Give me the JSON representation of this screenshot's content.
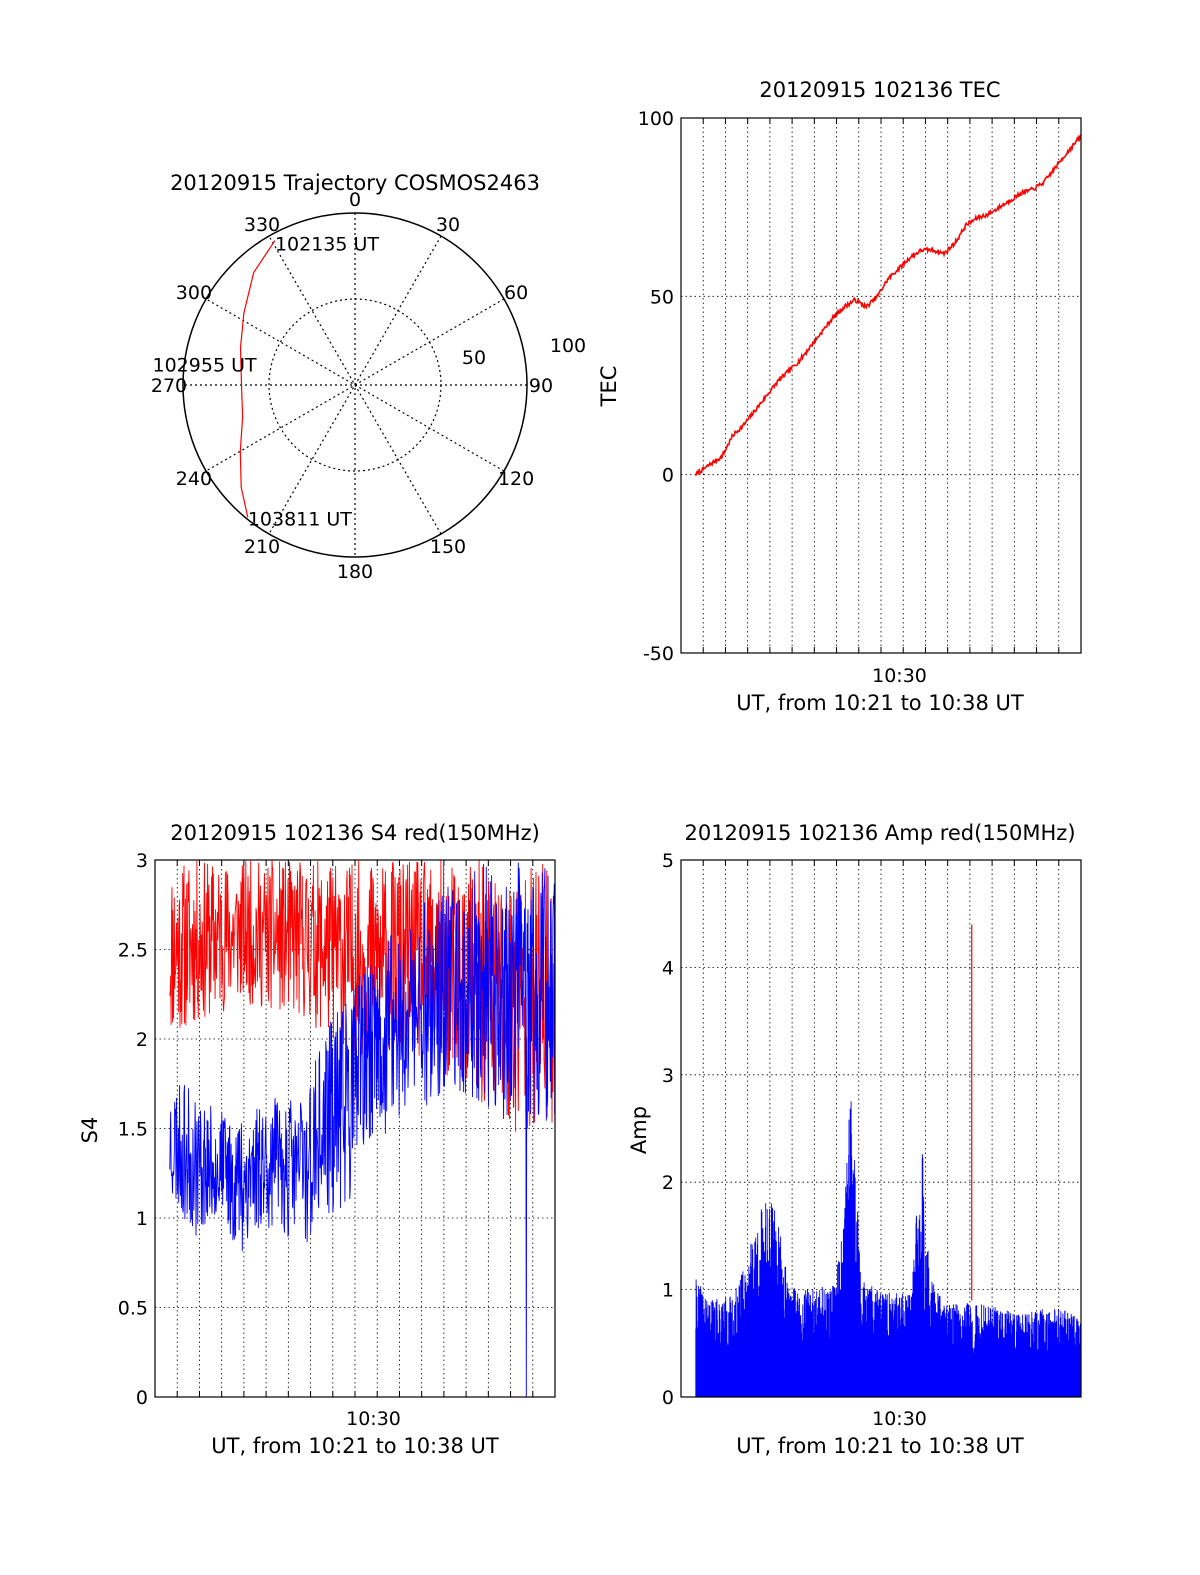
{
  "chart_data": [
    {
      "id": "trajectory",
      "type": "polar",
      "title": "20120915 Trajectory COSMOS2463",
      "angular_labels": [
        "0",
        "30",
        "60",
        "90",
        "120",
        "150",
        "180",
        "210",
        "240",
        "270",
        "300",
        "330"
      ],
      "radial_labels": [
        "50",
        "100"
      ],
      "rlim": [
        0,
        100
      ],
      "grid": true,
      "series": [
        {
          "color": "#ff0000",
          "points": [
            {
              "az": 331,
              "zen": 96
            },
            {
              "az": 318,
              "zen": 88
            },
            {
              "az": 303,
              "zen": 77
            },
            {
              "az": 288,
              "zen": 70
            },
            {
              "az": 270,
              "zen": 66
            },
            {
              "az": 254,
              "zen": 68
            },
            {
              "az": 240,
              "zen": 77
            },
            {
              "az": 228,
              "zen": 89
            },
            {
              "az": 219,
              "zen": 99
            }
          ]
        }
      ],
      "annotations": [
        {
          "text": "102135 UT",
          "az": 331,
          "zen": 96
        },
        {
          "text": "102955 UT",
          "az": 273,
          "zen": 62
        },
        {
          "text": "103811 UT",
          "az": 219,
          "zen": 99
        }
      ]
    },
    {
      "id": "tec",
      "type": "line",
      "title": "20120915 102136 TEC",
      "xlabel": "UT, from 10:21 to 10:38 UT",
      "ylabel": "TEC",
      "xlim": [
        "10:20:10",
        "10:38:10"
      ],
      "ylim": [
        -50,
        100
      ],
      "yticks": [
        "-50",
        "0",
        "50",
        "100"
      ],
      "xticks": [
        {
          "label": "10:30",
          "at": "10:30:00"
        }
      ],
      "grid": true,
      "series": [
        {
          "color": "#ff0000",
          "points": [
            [
              "10:20:50",
              0
            ],
            [
              "10:21:30",
              3
            ],
            [
              "10:22:00",
              5
            ],
            [
              "10:22:30",
              11
            ],
            [
              "10:23:00",
              14
            ],
            [
              "10:23:30",
              18
            ],
            [
              "10:24:00",
              22
            ],
            [
              "10:24:30",
              26
            ],
            [
              "10:25:00",
              29
            ],
            [
              "10:25:30",
              32
            ],
            [
              "10:26:00",
              36
            ],
            [
              "10:26:30",
              40
            ],
            [
              "10:27:00",
              44
            ],
            [
              "10:27:30",
              47
            ],
            [
              "10:28:00",
              49
            ],
            [
              "10:28:30",
              47
            ],
            [
              "10:29:00",
              50
            ],
            [
              "10:29:30",
              55
            ],
            [
              "10:30:00",
              58
            ],
            [
              "10:30:30",
              61
            ],
            [
              "10:31:00",
              63
            ],
            [
              "10:31:30",
              63
            ],
            [
              "10:32:00",
              62
            ],
            [
              "10:32:30",
              65
            ],
            [
              "10:33:00",
              70
            ],
            [
              "10:33:30",
              72
            ],
            [
              "10:34:00",
              73
            ],
            [
              "10:34:30",
              75
            ],
            [
              "10:35:00",
              77
            ],
            [
              "10:35:30",
              79
            ],
            [
              "10:36:00",
              80
            ],
            [
              "10:36:30",
              82
            ],
            [
              "10:37:00",
              86
            ],
            [
              "10:37:30",
              90
            ],
            [
              "10:38:10",
              95
            ]
          ]
        }
      ]
    },
    {
      "id": "s4",
      "type": "line",
      "title": "20120915 102136 S4 red(150MHz)",
      "xlabel": "UT, from 10:21 to 10:38 UT",
      "ylabel": "S4",
      "xlim": [
        "10:20:10",
        "10:38:10"
      ],
      "ylim": [
        0,
        3
      ],
      "yticks": [
        "0",
        "0.5",
        "1",
        "1.5",
        "2",
        "2.5",
        "3"
      ],
      "xticks": [
        {
          "label": "10:30",
          "at": "10:30:00"
        }
      ],
      "grid": true,
      "series": [
        {
          "color": "#ff0000",
          "band": [
            [
              "10:20:50",
              2.0,
              3.0
            ],
            [
              "10:24:00",
              2.2,
              3.0
            ],
            [
              "10:27:00",
              2.1,
              3.0
            ],
            [
              "10:29:00",
              1.9,
              3.0
            ],
            [
              "10:31:00",
              1.9,
              3.0
            ],
            [
              "10:33:00",
              1.8,
              3.0
            ],
            [
              "10:35:00",
              1.6,
              3.0
            ],
            [
              "10:36:00",
              1.4,
              3.0
            ],
            [
              "10:38:10",
              1.5,
              3.0
            ]
          ]
        },
        {
          "color": "#0000ff",
          "band": [
            [
              "10:20:50",
              1.1,
              1.8
            ],
            [
              "10:22:00",
              0.9,
              1.7
            ],
            [
              "10:23:00",
              1.0,
              1.6
            ],
            [
              "10:24:00",
              0.8,
              1.6
            ],
            [
              "10:25:00",
              0.95,
              1.7
            ],
            [
              "10:26:00",
              0.9,
              1.65
            ],
            [
              "10:27:00",
              0.85,
              1.75
            ],
            [
              "10:28:00",
              1.0,
              2.1
            ],
            [
              "10:29:00",
              1.1,
              2.3
            ],
            [
              "10:30:00",
              1.4,
              2.5
            ],
            [
              "10:32:00",
              1.6,
              2.8
            ],
            [
              "10:34:00",
              1.7,
              2.9
            ],
            [
              "10:35:00",
              1.6,
              3.0
            ],
            [
              "10:36:00",
              1.5,
              3.0
            ],
            [
              "10:37:00",
              1.5,
              3.0
            ],
            [
              "10:38:10",
              1.5,
              3.0
            ]
          ]
        }
      ]
    },
    {
      "id": "amp",
      "type": "line",
      "title": "20120915 102136 Amp red(150MHz)",
      "xlabel": "UT, from 10:21 to 10:38 UT",
      "ylabel": "Amp",
      "xlim": [
        "10:20:10",
        "10:38:10"
      ],
      "ylim": [
        0,
        5
      ],
      "yticks": [
        "0",
        "1",
        "2",
        "3",
        "4",
        "5"
      ],
      "xticks": [
        {
          "label": "10:30",
          "at": "10:30:00"
        }
      ],
      "grid": true,
      "series": [
        {
          "color": "#0000ff",
          "envelope": [
            [
              "10:20:50",
              1.1
            ],
            [
              "10:21:30",
              0.9
            ],
            [
              "10:22:30",
              0.95
            ],
            [
              "10:23:00",
              1.2
            ],
            [
              "10:23:30",
              1.6
            ],
            [
              "10:24:00",
              1.9
            ],
            [
              "10:24:30",
              1.7
            ],
            [
              "10:25:00",
              1.05
            ],
            [
              "10:26:00",
              1.0
            ],
            [
              "10:27:00",
              1.05
            ],
            [
              "10:27:30",
              1.6
            ],
            [
              "10:27:45",
              2.95
            ],
            [
              "10:28:00",
              2.3
            ],
            [
              "10:28:15",
              1.1
            ],
            [
              "10:29:00",
              1.0
            ],
            [
              "10:30:30",
              0.95
            ],
            [
              "10:31:00",
              2.45
            ],
            [
              "10:31:20",
              1.2
            ],
            [
              "10:32:00",
              0.85
            ],
            [
              "10:33:00",
              0.9
            ],
            [
              "10:34:00",
              0.85
            ],
            [
              "10:35:00",
              0.8
            ],
            [
              "10:36:00",
              0.8
            ],
            [
              "10:37:00",
              0.85
            ],
            [
              "10:38:10",
              0.75
            ]
          ]
        },
        {
          "color": "#ff0000",
          "spike": [
            "10:33:15",
            4.4
          ]
        }
      ]
    }
  ]
}
